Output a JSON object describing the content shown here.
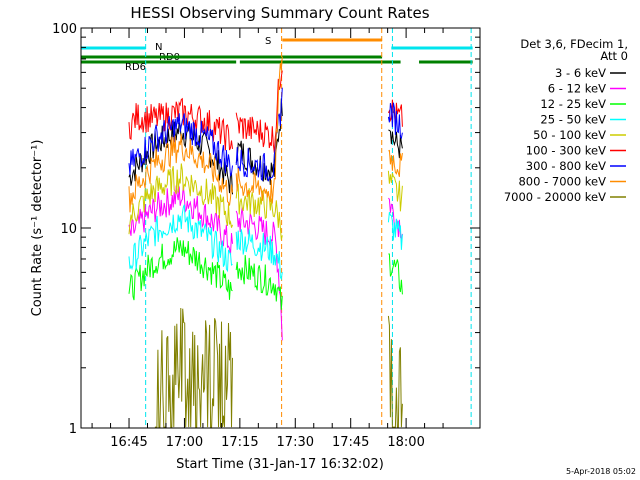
{
  "chart_data": {
    "type": "line",
    "title": "HESSI Observing Summary Count Rates",
    "xlabel": "Start Time (31-Jan-17 16:32:02)",
    "ylabel": "Count Rate (s⁻¹ detector⁻¹)",
    "x_unit": "minutes of day",
    "xlim": [
      992,
      1100
    ],
    "yscale": "log",
    "ylim": [
      1,
      100
    ],
    "x_ticks": [
      "16:45",
      "17:00",
      "17:15",
      "17:30",
      "17:45",
      "18:00"
    ],
    "y_ticks": [
      "1",
      "10",
      "100"
    ],
    "legend_header": [
      "Det 3,6, FDecim 1,",
      "Att 0"
    ],
    "legend_position": "right",
    "timestamp": "5-Apr-2018 05:02",
    "flags": [
      {
        "label": "N",
        "color": "#00e5ee",
        "segments": [
          [
            992,
            1009.5
          ],
          [
            1076,
            1098
          ]
        ]
      },
      {
        "label": "RD0",
        "color": "#008000",
        "segments": [
          [
            992,
            1034
          ],
          [
            1035,
            1078.5
          ],
          [
            1083.5,
            1098
          ]
        ]
      },
      {
        "label": "RD6",
        "color": "#008000",
        "segments": [
          [
            992,
            1035.5
          ],
          [
            1034,
            1073.5
          ]
        ]
      },
      {
        "label": "S",
        "color": "#ff8c00",
        "segments": [
          [
            1046.5,
            1073.5
          ]
        ]
      }
    ],
    "night_markers": {
      "color": "#00e5ee",
      "x": [
        1009.5,
        1076.3,
        1097.6
      ]
    },
    "saa_markers": {
      "color": "#ff8c00",
      "x": [
        1046.3,
        1073.4
      ]
    },
    "series": [
      {
        "name": "3 - 6 keV",
        "color": "#000000",
        "segments": [
          {
            "x": [
              1005,
              1012,
              1019,
              1026,
              1033
            ],
            "y": [
              18,
              26,
              31,
              25,
              16
            ]
          },
          {
            "x": [
              1034,
              1038,
              1042,
              1044.5,
              1046.5
            ],
            "y": [
              25,
              22,
              20,
              19,
              42
            ]
          },
          {
            "x": [
              1075.2,
              1076.5,
              1077.5,
              1079
            ],
            "y": [
              36,
              28,
              26,
              25
            ]
          }
        ]
      },
      {
        "name": "6 - 12 keV",
        "color": "#ff00ff",
        "segments": [
          {
            "x": [
              1005,
              1012,
              1019,
              1026,
              1033
            ],
            "y": [
              9,
              12.5,
              14.5,
              11.5,
              8
            ]
          },
          {
            "x": [
              1034,
              1038,
              1042,
              1044.5,
              1046.5
            ],
            "y": [
              11,
              10.5,
              9.5,
              9,
              3
            ]
          },
          {
            "x": [
              1075.2,
              1076.5,
              1077.5,
              1079
            ],
            "y": [
              14,
              12,
              11,
              10
            ]
          }
        ]
      },
      {
        "name": "12 - 25 keV",
        "color": "#00ff00",
        "segments": [
          {
            "x": [
              1005,
              1012,
              1019,
              1026,
              1033
            ],
            "y": [
              4.8,
              6.8,
              8,
              6.5,
              4.7
            ]
          },
          {
            "x": [
              1034,
              1038,
              1042,
              1044.5,
              1046.5
            ],
            "y": [
              6.5,
              6,
              5.5,
              5.3,
              4
            ]
          },
          {
            "x": [
              1075.2,
              1076.5,
              1077.5,
              1079
            ],
            "y": [
              7,
              6.5,
              6,
              5
            ]
          }
        ]
      },
      {
        "name": "25 - 50 keV",
        "color": "#00ffff",
        "segments": [
          {
            "x": [
              1005,
              1012,
              1019,
              1026,
              1033
            ],
            "y": [
              6.5,
              9.5,
              11.5,
              9,
              6.5
            ]
          },
          {
            "x": [
              1034,
              1038,
              1042,
              1044.5,
              1046.5
            ],
            "y": [
              9,
              8.5,
              8,
              7.5,
              6
            ]
          },
          {
            "x": [
              1075.2,
              1076.5,
              1077.5,
              1079
            ],
            "y": [
              11,
              10,
              9.5,
              8.5
            ]
          }
        ]
      },
      {
        "name": "50 - 100 keV",
        "color": "#cccc00",
        "segments": [
          {
            "x": [
              1005,
              1012,
              1019,
              1026,
              1033
            ],
            "y": [
              11,
              15.5,
              18,
              15,
              11
            ]
          },
          {
            "x": [
              1034,
              1038,
              1042,
              1044.5,
              1046.5
            ],
            "y": [
              14,
              13.5,
              13,
              12.5,
              10
            ]
          },
          {
            "x": [
              1075.2,
              1076.5,
              1077.5,
              1079
            ],
            "y": [
              17,
              16,
              15,
              14
            ]
          }
        ]
      },
      {
        "name": "100 - 300 keV",
        "color": "#ff0000",
        "segments": [
          {
            "x": [
              1005,
              1007,
              1012,
              1019,
              1026,
              1033
            ],
            "y": [
              32,
              36,
              35,
              38,
              34,
              27
            ]
          },
          {
            "x": [
              1034,
              1038,
              1042,
              1044.5,
              1046.5
            ],
            "y": [
              33,
              31,
              30,
              28,
              70
            ]
          },
          {
            "x": [
              1075.2,
              1076.5,
              1077.5,
              1079
            ],
            "y": [
              42,
              38,
              36,
              35
            ]
          }
        ]
      },
      {
        "name": "300 - 800 keV",
        "color": "#0000ff",
        "segments": [
          {
            "x": [
              1005,
              1012,
              1019,
              1026,
              1033
            ],
            "y": [
              20,
              28,
              33,
              28,
              20
            ]
          },
          {
            "x": [
              1034,
              1038,
              1042,
              1044.5,
              1046.5
            ],
            "y": [
              22,
              21,
              20,
              20,
              45
            ]
          },
          {
            "x": [
              1075.2,
              1076.5,
              1077.5,
              1079
            ],
            "y": [
              40,
              36,
              34,
              33
            ]
          }
        ]
      },
      {
        "name": "800 - 7000 keV",
        "color": "#ff8c00",
        "segments": [
          {
            "x": [
              1005,
              1012,
              1019,
              1026,
              1033
            ],
            "y": [
              14,
              21,
              26,
              21,
              14
            ]
          },
          {
            "x": [
              1034,
              1038,
              1042,
              1044.5,
              1046.5
            ],
            "y": [
              17,
              16,
              15.5,
              15,
              75
            ]
          },
          {
            "x": [
              1075.2,
              1076.5,
              1077.5,
              1079
            ],
            "y": [
              24,
              22,
              21,
              20
            ]
          }
        ]
      },
      {
        "name": "7000 - 20000 keV",
        "color": "#808000",
        "segments": [
          {
            "x": [
              1012,
              1019,
              1026,
              1033
            ],
            "y": [
              2.5,
              2.8,
              2.5,
              2.2
            ]
          },
          {
            "x": [
              1075.2,
              1076.5,
              1077.5,
              1079
            ],
            "y": [
              2.6,
              2.4,
              2.3,
              2.2
            ]
          }
        ]
      }
    ]
  }
}
